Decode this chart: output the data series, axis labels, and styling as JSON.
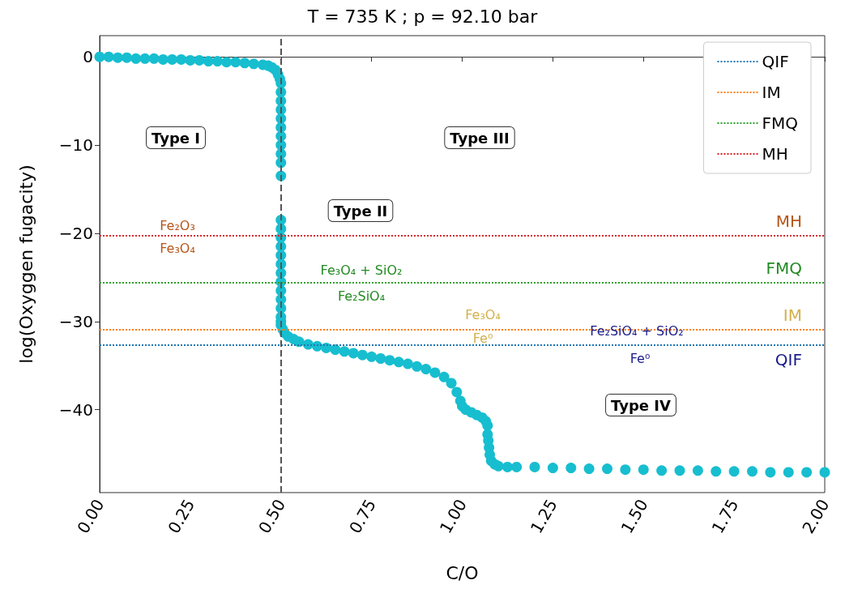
{
  "chart_data": {
    "type": "scatter",
    "title": "T = 735 K ; p = 92.10 bar",
    "xlabel": "C/O",
    "ylabel": "log(Oxyggen fugacity)",
    "x": [
      0,
      0.025,
      0.05,
      0.075,
      0.1,
      0.125,
      0.15,
      0.175,
      0.2,
      0.225,
      0.25,
      0.275,
      0.3,
      0.325,
      0.35,
      0.375,
      0.4,
      0.425,
      0.45,
      0.465,
      0.475,
      0.485,
      0.492,
      0.497,
      0.5,
      0.5,
      0.5,
      0.5,
      0.5,
      0.5,
      0.5,
      0.5,
      0.5,
      0.5,
      0.5,
      0.5,
      0.5,
      0.5,
      0.5,
      0.5,
      0.5,
      0.5,
      0.5,
      0.5,
      0.5,
      0.5,
      0.5,
      0.5,
      0.5,
      0.505,
      0.51,
      0.52,
      0.535,
      0.55,
      0.575,
      0.6,
      0.625,
      0.65,
      0.675,
      0.7,
      0.725,
      0.75,
      0.775,
      0.8,
      0.825,
      0.85,
      0.875,
      0.9,
      0.925,
      0.95,
      0.97,
      0.985,
      0.995,
      1.0,
      1.01,
      1.025,
      1.04,
      1.055,
      1.065,
      1.07,
      1.07,
      1.072,
      1.074,
      1.076,
      1.08,
      1.09,
      1.1,
      1.125,
      1.15,
      1.2,
      1.25,
      1.3,
      1.35,
      1.4,
      1.45,
      1.5,
      1.55,
      1.6,
      1.65,
      1.7,
      1.75,
      1.8,
      1.85,
      1.9,
      1.95,
      2.0
    ],
    "values": [
      0,
      0,
      -0.1,
      -0.1,
      -0.2,
      -0.2,
      -0.2,
      -0.3,
      -0.3,
      -0.3,
      -0.4,
      -0.4,
      -0.5,
      -0.5,
      -0.6,
      -0.6,
      -0.7,
      -0.8,
      -0.9,
      -1.0,
      -1.2,
      -1.5,
      -2.0,
      -2.5,
      -3,
      -4,
      -5,
      -6,
      -7,
      -8,
      -9,
      -10,
      -11,
      -12,
      -13.5,
      -18.5,
      -19.5,
      -20.5,
      -21.5,
      -22.5,
      -23.5,
      -24.5,
      -25.5,
      -26.5,
      -27.5,
      -28.5,
      -29.5,
      -30.0,
      -30.4,
      -30.9,
      -31.3,
      -31.7,
      -32.0,
      -32.3,
      -32.6,
      -32.8,
      -33.0,
      -33.2,
      -33.4,
      -33.6,
      -33.8,
      -34.0,
      -34.2,
      -34.4,
      -34.6,
      -34.8,
      -35.1,
      -35.4,
      -35.8,
      -36.3,
      -37.0,
      -38.0,
      -39.0,
      -39.6,
      -40.0,
      -40.3,
      -40.6,
      -40.9,
      -41.3,
      -41.8,
      -42.8,
      -43.5,
      -44.3,
      -45.1,
      -45.8,
      -46.2,
      -46.4,
      -46.5,
      -46.5,
      -46.5,
      -46.6,
      -46.6,
      -46.7,
      -46.7,
      -46.8,
      -46.8,
      -46.9,
      -46.9,
      -46.9,
      -47.0,
      -47.0,
      -47.0,
      -47.1,
      -47.1,
      -47.1,
      -47.1
    ],
    "color": "#17becf",
    "marker": "circle",
    "xlim": [
      0,
      2
    ],
    "xticks": [
      {
        "value": 0,
        "label": "0.00"
      },
      {
        "value": 0.25,
        "label": "0.25"
      },
      {
        "value": 0.5,
        "label": "0.50"
      },
      {
        "value": 0.75,
        "label": "0.75"
      },
      {
        "value": 1,
        "label": "1.00"
      },
      {
        "value": 1.25,
        "label": "1.25"
      },
      {
        "value": 1.5,
        "label": "1.50"
      },
      {
        "value": 1.75,
        "label": "1.75"
      },
      {
        "value": 2,
        "label": "2.00"
      }
    ],
    "ylim": [
      -49.4,
      2.4
    ],
    "yticks": [
      {
        "value": 0,
        "label": "0"
      },
      {
        "value": -10,
        "label": "−10"
      },
      {
        "value": -20,
        "label": "−20"
      },
      {
        "value": -30,
        "label": "−30"
      },
      {
        "value": -40,
        "label": "−40"
      }
    ],
    "grid": false,
    "legend": "top right",
    "ref_lines": [
      {
        "axis": "y",
        "value": -32.7,
        "label": "QIF",
        "color": "#1f77b4",
        "line_style": "dotted"
      },
      {
        "axis": "y",
        "value": -30.9,
        "label": "IM",
        "color": "#ff7f0e",
        "line_style": "dotted"
      },
      {
        "axis": "y",
        "value": -25.6,
        "label": "FMQ",
        "color": "#2ca02c",
        "line_style": "dotted"
      },
      {
        "axis": "y",
        "value": -20.3,
        "label": "MH",
        "color": "#d62728",
        "line_style": "dotted"
      },
      {
        "axis": "x",
        "value": 0.5,
        "color": "#555555",
        "line_style": "dashed"
      }
    ],
    "annotations": [
      "Type I",
      "Type II",
      "Type III",
      "Type IV",
      "Fe₂O₃",
      "Fe₃O₄",
      "Fe₃O₄ + SiO₂",
      "Fe₂SiO₄",
      "Fe₃O₄",
      "Fe⁰",
      "Fe₂SiO₄ + SiO₂",
      "Fe⁰"
    ]
  }
}
